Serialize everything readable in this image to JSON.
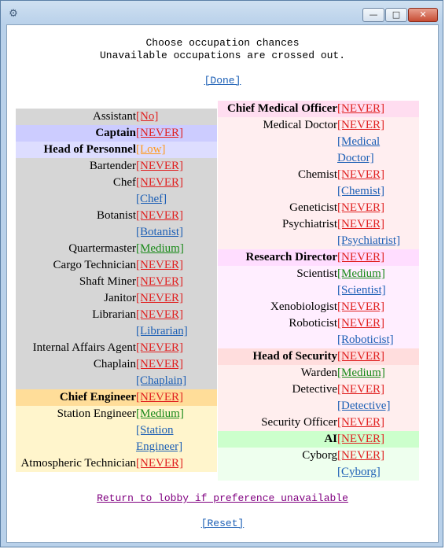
{
  "window": {
    "icon": "app-icon",
    "min": "—",
    "max": "□",
    "close": "✕"
  },
  "header": {
    "line1": "Choose occupation chances",
    "line2": "Unavailable occupations are crossed out.",
    "done": "[Done]"
  },
  "colors": {
    "gray": "#d6d6d6",
    "captain": "#ccccff",
    "hop": "#ddddff",
    "eng_head": "#ffdd99",
    "eng": "#fff5cc",
    "cmo_head": "#ffddf0",
    "med": "#ffeef0",
    "rd_head": "#ffddff",
    "sci": "#ffeeff",
    "hos_head": "#ffdddd",
    "sec": "#ffeeee",
    "ai_head": "#ccffcc",
    "ai": "#eeffee"
  },
  "left": [
    {
      "label": "Assistant",
      "value": "[No]",
      "cls": "no",
      "bg": "gray"
    },
    {
      "label": "Captain",
      "value": "[NEVER]",
      "cls": "never",
      "bg": "captain",
      "head": true
    },
    {
      "label": "Head of Personnel",
      "value": "[Low]",
      "cls": "low",
      "bg": "hop",
      "head": true
    },
    {
      "label": "Bartender",
      "value": "[NEVER]",
      "cls": "never",
      "bg": "gray"
    },
    {
      "label": "Chef",
      "value": "[NEVER]",
      "cls": "never",
      "bg": "gray"
    },
    {
      "label": "",
      "value": "[Chef]",
      "cls": "jl",
      "bg": "gray"
    },
    {
      "label": "Botanist",
      "value": "[NEVER]",
      "cls": "never",
      "bg": "gray"
    },
    {
      "label": "",
      "value": "[Botanist]",
      "cls": "jl",
      "bg": "gray"
    },
    {
      "label": "Quartermaster",
      "value": "[Medium]",
      "cls": "medium",
      "bg": "gray"
    },
    {
      "label": "Cargo Technician",
      "value": "[NEVER]",
      "cls": "never",
      "bg": "gray"
    },
    {
      "label": "Shaft Miner",
      "value": "[NEVER]",
      "cls": "never",
      "bg": "gray"
    },
    {
      "label": "Janitor",
      "value": "[NEVER]",
      "cls": "never",
      "bg": "gray"
    },
    {
      "label": "Librarian",
      "value": "[NEVER]",
      "cls": "never",
      "bg": "gray"
    },
    {
      "label": "",
      "value": "[Librarian]",
      "cls": "jl",
      "bg": "gray"
    },
    {
      "label": "Internal Affairs Agent",
      "value": "[NEVER]",
      "cls": "never",
      "bg": "gray"
    },
    {
      "label": "Chaplain",
      "value": "[NEVER]",
      "cls": "never",
      "bg": "gray"
    },
    {
      "label": "",
      "value": "[Chaplain]",
      "cls": "jl",
      "bg": "gray"
    },
    {
      "label": "Chief Engineer",
      "value": "[NEVER]",
      "cls": "never",
      "bg": "eng_head",
      "head": true
    },
    {
      "label": "Station Engineer",
      "value": "[Medium]",
      "cls": "medium",
      "bg": "eng"
    },
    {
      "label": "",
      "value": "[Station",
      "cls": "jl",
      "bg": "eng"
    },
    {
      "label": "",
      "value": "Engineer]",
      "cls": "jl",
      "bg": "eng"
    },
    {
      "label": "Atmospheric Technician",
      "value": "[NEVER]",
      "cls": "never",
      "bg": "eng"
    }
  ],
  "right": [
    {
      "label": "Chief Medical Officer",
      "value": "[NEVER]",
      "cls": "never",
      "bg": "cmo_head",
      "head": true
    },
    {
      "label": "Medical Doctor",
      "value": "[NEVER]",
      "cls": "never",
      "bg": "med"
    },
    {
      "label": "",
      "value": "[Medical",
      "cls": "jl",
      "bg": "med"
    },
    {
      "label": "",
      "value": "Doctor]",
      "cls": "jl",
      "bg": "med"
    },
    {
      "label": "Chemist",
      "value": "[NEVER]",
      "cls": "never",
      "bg": "med"
    },
    {
      "label": "",
      "value": "[Chemist]",
      "cls": "jl",
      "bg": "med"
    },
    {
      "label": "Geneticist",
      "value": "[NEVER]",
      "cls": "never",
      "bg": "med"
    },
    {
      "label": "Psychiatrist",
      "value": "[NEVER]",
      "cls": "never",
      "bg": "med"
    },
    {
      "label": "",
      "value": "[Psychiatrist]",
      "cls": "jl",
      "bg": "med"
    },
    {
      "label": "Research Director",
      "value": "[NEVER]",
      "cls": "never",
      "bg": "rd_head",
      "head": true
    },
    {
      "label": "Scientist",
      "value": "[Medium]",
      "cls": "medium",
      "bg": "sci"
    },
    {
      "label": "",
      "value": "[Scientist]",
      "cls": "jl",
      "bg": "sci"
    },
    {
      "label": "Xenobiologist",
      "value": "[NEVER]",
      "cls": "never",
      "bg": "sci"
    },
    {
      "label": "Roboticist",
      "value": "[NEVER]",
      "cls": "never",
      "bg": "sci"
    },
    {
      "label": "",
      "value": "[Roboticist]",
      "cls": "jl",
      "bg": "sci"
    },
    {
      "label": "Head of Security",
      "value": "[NEVER]",
      "cls": "never",
      "bg": "hos_head",
      "head": true
    },
    {
      "label": "Warden",
      "value": "[Medium]",
      "cls": "medium",
      "bg": "sec"
    },
    {
      "label": "Detective",
      "value": "[NEVER]",
      "cls": "never",
      "bg": "sec"
    },
    {
      "label": "",
      "value": "[Detective]",
      "cls": "jl",
      "bg": "sec"
    },
    {
      "label": "Security Officer",
      "value": "[NEVER]",
      "cls": "never",
      "bg": "sec"
    },
    {
      "label": "AI",
      "value": "[NEVER]",
      "cls": "never",
      "bg": "ai_head",
      "head": true
    },
    {
      "label": "Cyborg",
      "value": "[NEVER]",
      "cls": "never",
      "bg": "ai"
    },
    {
      "label": "",
      "value": "[Cyborg]",
      "cls": "jl",
      "bg": "ai"
    }
  ],
  "footer": {
    "return_lobby": "Return to lobby if preference unavailable",
    "reset": "[Reset]"
  }
}
